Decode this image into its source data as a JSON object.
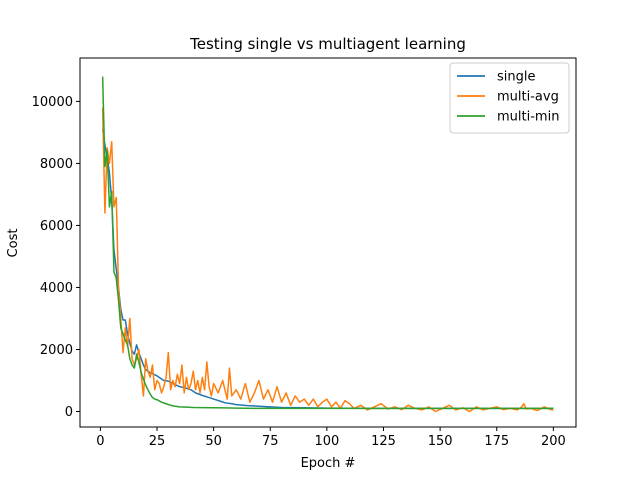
{
  "chart_data": {
    "type": "line",
    "title": "Testing single vs multiagent learning",
    "xlabel": "Epoch #",
    "ylabel": "Cost",
    "xlim": [
      -9,
      210
    ],
    "ylim": [
      -500,
      11400
    ],
    "xticks": [
      0,
      25,
      50,
      75,
      100,
      125,
      150,
      175,
      200
    ],
    "yticks": [
      0,
      2000,
      4000,
      6000,
      8000,
      10000
    ],
    "grid": false,
    "legend": "top-right",
    "series": [
      {
        "name": "single",
        "color": "#1f77b4",
        "x": [
          1,
          2,
          3,
          4,
          5,
          6,
          7,
          8,
          9,
          10,
          11,
          12,
          13,
          14,
          15,
          16,
          17,
          18,
          19,
          20,
          22,
          25,
          28,
          30,
          32,
          35,
          38,
          40,
          42,
          45,
          48,
          50,
          53,
          55,
          58,
          60,
          65,
          70,
          75,
          80,
          90,
          100,
          110,
          120,
          130,
          140,
          150,
          160,
          170,
          180,
          190,
          200
        ],
        "values": [
          9100,
          8600,
          8200,
          7700,
          6800,
          5200,
          4600,
          4000,
          3300,
          2950,
          2950,
          2500,
          2200,
          1950,
          1850,
          2150,
          1900,
          1700,
          1500,
          1350,
          1250,
          1150,
          1000,
          980,
          900,
          800,
          750,
          700,
          600,
          520,
          450,
          400,
          330,
          280,
          250,
          220,
          190,
          170,
          150,
          130,
          120,
          110,
          105,
          100,
          100,
          100,
          100,
          100,
          100,
          100,
          100,
          100
        ]
      },
      {
        "name": "multi-avg",
        "color": "#ff7f0e",
        "x": [
          1,
          2,
          3,
          4,
          5,
          6,
          7,
          8,
          9,
          10,
          11,
          12,
          13,
          14,
          15,
          16,
          17,
          18,
          19,
          20,
          21,
          22,
          23,
          24,
          25,
          26,
          27,
          28,
          29,
          30,
          31,
          32,
          33,
          34,
          35,
          36,
          37,
          38,
          39,
          40,
          41,
          42,
          43,
          44,
          45,
          46,
          47,
          48,
          49,
          50,
          52,
          54,
          56,
          57,
          58,
          60,
          62,
          64,
          66,
          68,
          70,
          72,
          74,
          76,
          78,
          80,
          82,
          84,
          86,
          88,
          90,
          92,
          94,
          96,
          98,
          100,
          102,
          104,
          106,
          108,
          110,
          112,
          115,
          118,
          121,
          124,
          127,
          130,
          133,
          136,
          139,
          142,
          145,
          148,
          151,
          154,
          157,
          160,
          163,
          166,
          169,
          172,
          175,
          178,
          181,
          184,
          186,
          187,
          188,
          190,
          193,
          196,
          199,
          200
        ],
        "values": [
          9800,
          6400,
          8500,
          8000,
          8700,
          6600,
          6900,
          4000,
          3000,
          1900,
          2700,
          2100,
          3000,
          1700,
          1500,
          1700,
          2000,
          1200,
          500,
          1700,
          1300,
          1100,
          1500,
          700,
          1000,
          900,
          600,
          800,
          1100,
          1900,
          700,
          1000,
          800,
          1200,
          900,
          1500,
          600,
          1100,
          700,
          900,
          1300,
          700,
          1000,
          600,
          1100,
          700,
          1600,
          800,
          500,
          900,
          600,
          1000,
          400,
          1400,
          500,
          700,
          400,
          900,
          300,
          600,
          1000,
          400,
          700,
          300,
          800,
          300,
          600,
          200,
          500,
          300,
          400,
          200,
          400,
          150,
          300,
          400,
          150,
          300,
          100,
          350,
          250,
          100,
          200,
          50,
          150,
          250,
          80,
          150,
          60,
          200,
          100,
          50,
          150,
          0,
          100,
          200,
          50,
          120,
          0,
          150,
          50,
          100,
          150,
          60,
          100,
          50,
          150,
          250,
          80,
          100,
          30,
          150,
          60,
          50
        ]
      },
      {
        "name": "multi-min",
        "color": "#2ca02c",
        "x": [
          1,
          2,
          3,
          4,
          5,
          6,
          7,
          8,
          9,
          10,
          11,
          12,
          13,
          14,
          15,
          16,
          17,
          18,
          19,
          20,
          21,
          22,
          23,
          24,
          25,
          27,
          29,
          31,
          33,
          35,
          38,
          41,
          45,
          50,
          55,
          60,
          70,
          80,
          90,
          100,
          120,
          140,
          160,
          180,
          200
        ],
        "values": [
          10800,
          7900,
          8400,
          6600,
          7100,
          4500,
          4300,
          3600,
          2700,
          2500,
          2300,
          2150,
          1700,
          1500,
          1400,
          1850,
          1600,
          1250,
          1050,
          850,
          700,
          560,
          450,
          400,
          380,
          300,
          250,
          200,
          170,
          150,
          140,
          130,
          125,
          120,
          115,
          110,
          100,
          100,
          100,
          100,
          100,
          100,
          100,
          100,
          100
        ]
      }
    ]
  }
}
